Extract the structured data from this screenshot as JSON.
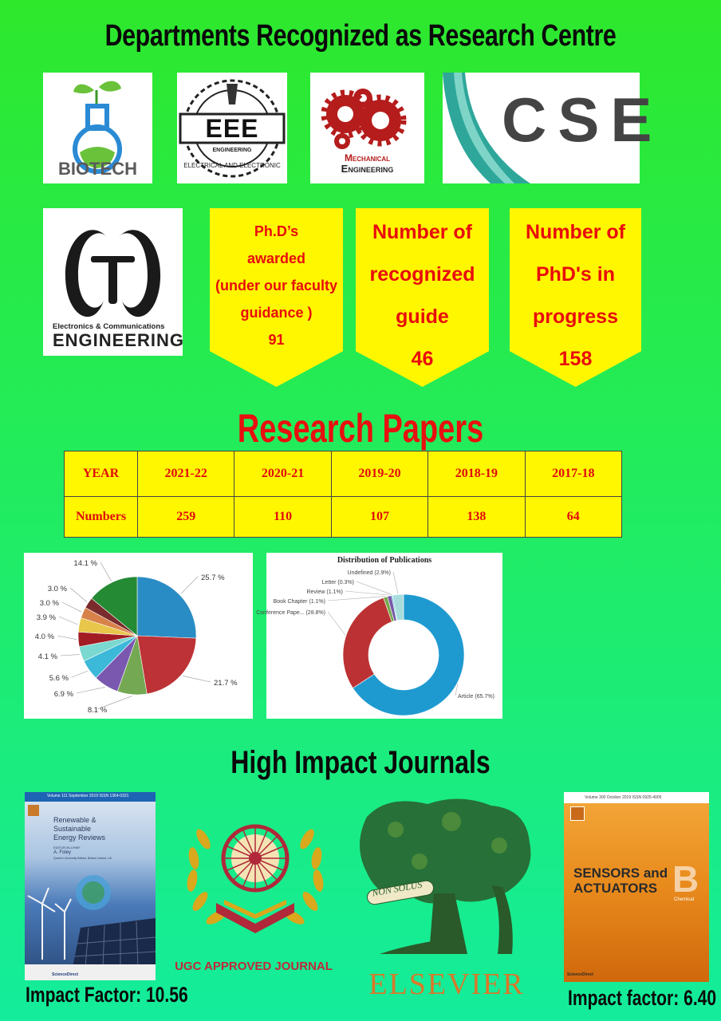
{
  "header": {
    "title": "Departments Recognized as Research Centre"
  },
  "departments": {
    "biotech": "BIOTECH",
    "eee": {
      "badge": "EEE",
      "ring1": "ENGINEERING",
      "ring2": "ELECTRICAL AND ELECTRONIC"
    },
    "mechanical": {
      "line1": "Mechanical",
      "line2": "Engineering"
    },
    "cse": "CSE",
    "ece": {
      "line1": "Electronics & Communications",
      "line2": "ENGINEERING"
    }
  },
  "stats": [
    {
      "lines": [
        "Ph.D’s",
        "awarded",
        "(under our faculty",
        "guidance )"
      ],
      "value": "91"
    },
    {
      "lines": [
        "Number  of",
        "recognized",
        "guide"
      ],
      "value": "46"
    },
    {
      "lines": [
        "Number of",
        "PhD's in",
        "progress"
      ],
      "value": "158"
    }
  ],
  "research": {
    "title": "Research Papers",
    "table": {
      "row_headers": [
        "YEAR",
        "Numbers"
      ],
      "years": [
        "2021-22",
        "2020-21",
        "2019-20",
        "2018-19",
        "2017-18"
      ],
      "numbers": [
        "259",
        "110",
        "107",
        "138",
        "64"
      ]
    }
  },
  "chart_data": [
    {
      "type": "pie",
      "title": "",
      "labels": [
        "25.7 %",
        "21.7 %",
        "8.1 %",
        "6.9 %",
        "5.6 %",
        "4.1 %",
        "4.0 %",
        "3.9 %",
        "3.0 %",
        "3.0 %",
        "14.1 %"
      ],
      "values": [
        25.7,
        21.7,
        8.1,
        6.9,
        5.6,
        4.1,
        4.0,
        3.9,
        3.0,
        3.0,
        14.1
      ],
      "colors": [
        "#2a8cc4",
        "#bd3236",
        "#74a853",
        "#7a58b0",
        "#3cb8d8",
        "#7ad8d0",
        "#a21c24",
        "#e8c64a",
        "#d8824a",
        "#7a2c2c",
        "#248a34"
      ]
    },
    {
      "type": "pie",
      "title": "Distribution of Publications",
      "labels": [
        "Article (65.7%)",
        "Conference Pape... (28.8%)",
        "Book Chapter (1.1%)",
        "Review (1.1%)",
        "Letter (0.3%)",
        "Undefined (2.9%)"
      ],
      "values": [
        65.7,
        28.8,
        1.1,
        1.1,
        0.3,
        2.9
      ],
      "colors": [
        "#1f9ad0",
        "#bc3234",
        "#7aa850",
        "#7a58a8",
        "#3cc0dc",
        "#a8dcdc"
      ]
    }
  ],
  "journals": {
    "title": "High Impact Journals",
    "renewable": {
      "masthead": "Volume 111  September 2019    ISSN 1364-0321",
      "title_lines": [
        "Renewable &",
        "Sustainable",
        "Energy Reviews"
      ],
      "editor_label": "EDITOR-IN-CHIEF",
      "editor": "A. Foley",
      "affiliation": "Queen's University Belfast, Belfast, Ireland, UK",
      "footer": "ScienceDirect",
      "impact": "Impact Factor: 10.56"
    },
    "ugc": {
      "caption": "UGC APPROVED JOURNAL"
    },
    "elsevier": {
      "motto": "NON SOLUS",
      "name": "ELSEVIER"
    },
    "sensors": {
      "masthead": "Volume 300   October 2019    ISSN 0925-4005",
      "title_lines": [
        "SENSORS and",
        "ACTUATORS"
      ],
      "letter": "B",
      "subtitle": "Chemical",
      "footer": "ScienceDirect",
      "impact": "Impact factor: 6.40"
    }
  },
  "colors": {
    "stat_bg": "#fff700",
    "stat_text": "#e80c0c",
    "accent_red": "#e81010"
  }
}
